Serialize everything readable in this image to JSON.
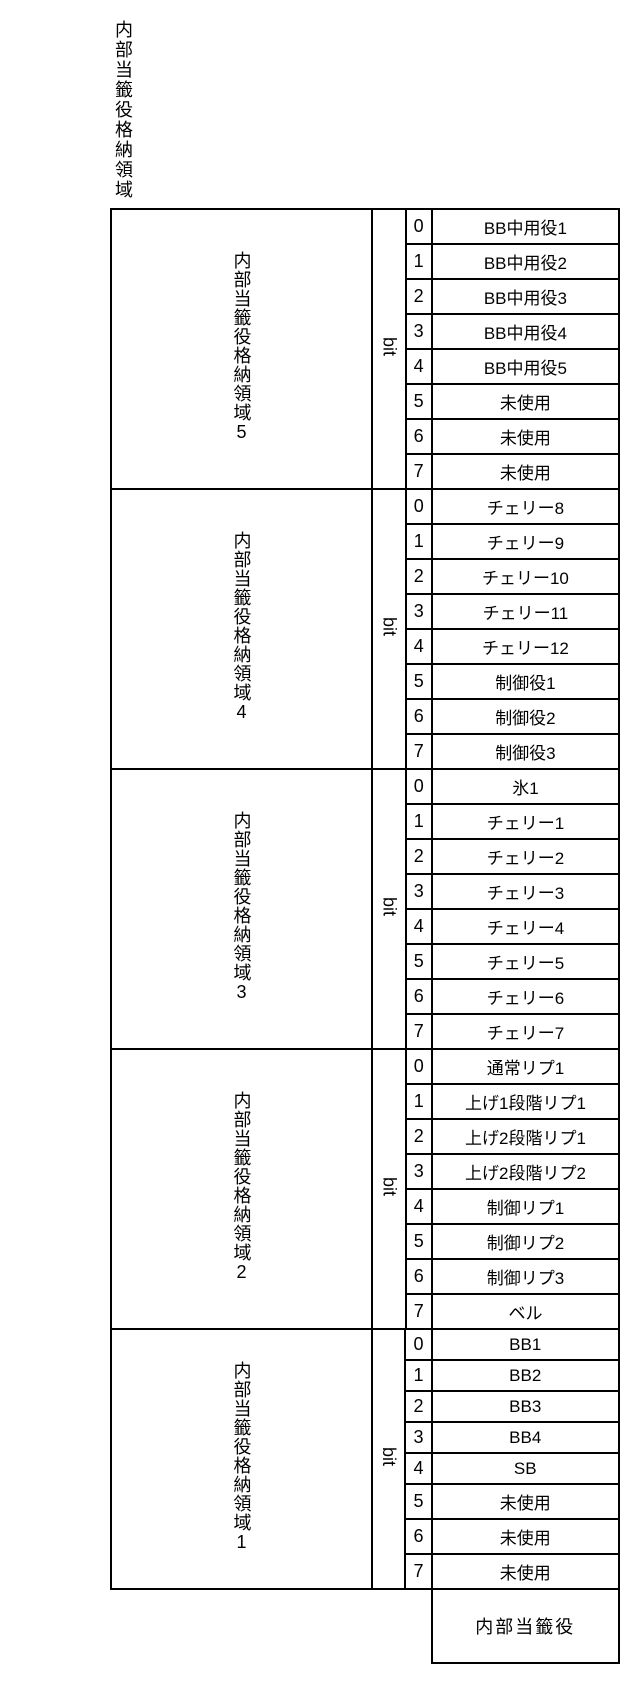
{
  "page_title": "内部当籤役格納領域",
  "bit_label": "bit",
  "footer_label": "内部当籤役",
  "border_color": "#000000",
  "background_color": "#ffffff",
  "font_size_pt": 13,
  "regions": [
    {
      "header": "内部当籤役格納領域5",
      "rows": [
        {
          "idx": "0",
          "value": "BB中用役1"
        },
        {
          "idx": "1",
          "value": "BB中用役2"
        },
        {
          "idx": "2",
          "value": "BB中用役3"
        },
        {
          "idx": "3",
          "value": "BB中用役4"
        },
        {
          "idx": "4",
          "value": "BB中用役5"
        },
        {
          "idx": "5",
          "value": "未使用"
        },
        {
          "idx": "6",
          "value": "未使用"
        },
        {
          "idx": "7",
          "value": "未使用"
        }
      ]
    },
    {
      "header": "内部当籤役格納領域4",
      "rows": [
        {
          "idx": "0",
          "value": "チェリー8"
        },
        {
          "idx": "1",
          "value": "チェリー9"
        },
        {
          "idx": "2",
          "value": "チェリー10"
        },
        {
          "idx": "3",
          "value": "チェリー11"
        },
        {
          "idx": "4",
          "value": "チェリー12"
        },
        {
          "idx": "5",
          "value": "制御役1"
        },
        {
          "idx": "6",
          "value": "制御役2"
        },
        {
          "idx": "7",
          "value": "制御役3"
        }
      ]
    },
    {
      "header": "内部当籤役格納領域3",
      "rows": [
        {
          "idx": "0",
          "value": "氷1"
        },
        {
          "idx": "1",
          "value": "チェリー1"
        },
        {
          "idx": "2",
          "value": "チェリー2"
        },
        {
          "idx": "3",
          "value": "チェリー3"
        },
        {
          "idx": "4",
          "value": "チェリー4"
        },
        {
          "idx": "5",
          "value": "チェリー5"
        },
        {
          "idx": "6",
          "value": "チェリー6"
        },
        {
          "idx": "7",
          "value": "チェリー7"
        }
      ]
    },
    {
      "header": "内部当籤役格納領域2",
      "rows": [
        {
          "idx": "0",
          "value": "通常リプ1"
        },
        {
          "idx": "1",
          "value": "上げ1段階リプ1"
        },
        {
          "idx": "2",
          "value": "上げ2段階リプ1"
        },
        {
          "idx": "3",
          "value": "上げ2段階リプ2"
        },
        {
          "idx": "4",
          "value": "制御リプ1"
        },
        {
          "idx": "5",
          "value": "制御リプ2"
        },
        {
          "idx": "6",
          "value": "制御リプ3"
        },
        {
          "idx": "7",
          "value": "ベル"
        }
      ]
    },
    {
      "header": "内部当籤役格納領域1",
      "rows": [
        {
          "idx": "0",
          "value": "BB1"
        },
        {
          "idx": "1",
          "value": "BB2"
        },
        {
          "idx": "2",
          "value": "BB3"
        },
        {
          "idx": "3",
          "value": "BB4"
        },
        {
          "idx": "4",
          "value": "SB"
        },
        {
          "idx": "5",
          "value": "未使用"
        },
        {
          "idx": "6",
          "value": "未使用"
        },
        {
          "idx": "7",
          "value": "未使用"
        }
      ]
    }
  ]
}
